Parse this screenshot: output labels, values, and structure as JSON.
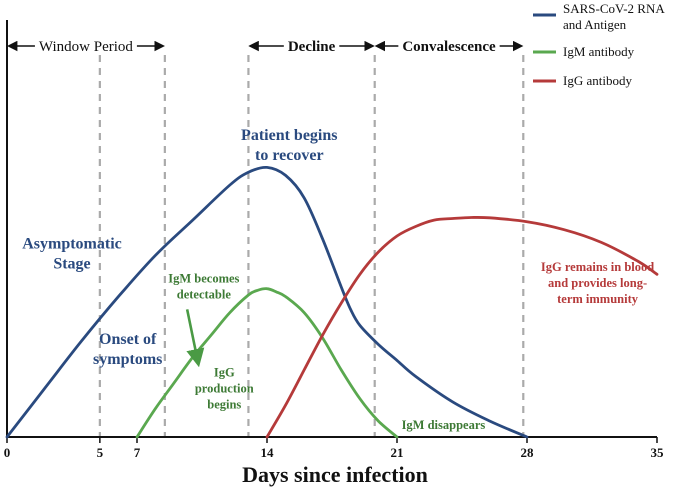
{
  "chart_data": {
    "type": "line",
    "title": "",
    "xlabel": "Days since infection",
    "ylabel": "",
    "xlim": [
      0,
      35
    ],
    "ylim": [
      0,
      1
    ],
    "grid": false,
    "legend_position": "top-right",
    "x_ticks": [
      0,
      5,
      7,
      14,
      21,
      28,
      35
    ],
    "x_tick_labels": [
      "0",
      "5",
      "7",
      "14",
      "21",
      "28",
      "35"
    ],
    "series": [
      {
        "name": "SARS-CoV-2 RNA and Antigen",
        "color": "#2a4a7f",
        "x": [
          0,
          2,
          4,
          6,
          8,
          10,
          12,
          13,
          14,
          15,
          16,
          17,
          18,
          18.5,
          19,
          20,
          21,
          22,
          24,
          26,
          28
        ],
        "y": [
          0,
          0.15,
          0.3,
          0.44,
          0.57,
          0.68,
          0.79,
          0.83,
          0.845,
          0.82,
          0.75,
          0.62,
          0.47,
          0.4,
          0.35,
          0.29,
          0.24,
          0.19,
          0.11,
          0.05,
          0
        ]
      },
      {
        "name": "IgM antibody",
        "color": "#5aa84f",
        "x": [
          7,
          8,
          9,
          10,
          11,
          12,
          13,
          13.5,
          14,
          14.5,
          15,
          16,
          17,
          18,
          19,
          20,
          21
        ],
        "y": [
          0,
          0.09,
          0.17,
          0.25,
          0.32,
          0.39,
          0.445,
          0.46,
          0.465,
          0.455,
          0.44,
          0.39,
          0.31,
          0.21,
          0.12,
          0.05,
          0
        ]
      },
      {
        "name": "IgG antibody",
        "color": "#b53a3a",
        "x": [
          14,
          15,
          16,
          17,
          18,
          19,
          20,
          21,
          22,
          23,
          24,
          25,
          26,
          28,
          30,
          32,
          34,
          35
        ],
        "y": [
          0,
          0.1,
          0.21,
          0.32,
          0.42,
          0.51,
          0.58,
          0.63,
          0.66,
          0.68,
          0.685,
          0.688,
          0.687,
          0.675,
          0.65,
          0.61,
          0.55,
          0.51
        ]
      }
    ],
    "dashed_lines_x": [
      5,
      8.5,
      13,
      19.8,
      27.8
    ],
    "phases": [
      {
        "label": "Window Period",
        "x_start": 0,
        "x_end": 8.5
      },
      {
        "label": "Decline",
        "x_start": 13,
        "x_end": 19.8
      },
      {
        "label": "Convalescence",
        "x_start": 19.8,
        "x_end": 27.8
      }
    ],
    "annotations": [
      {
        "text": [
          "Asymptomatic",
          "Stage"
        ],
        "x": 3.5,
        "y": 0.56,
        "color": "#2a4a7f",
        "size": "large"
      },
      {
        "text": [
          "Onset of",
          "symptoms"
        ],
        "x": 6.5,
        "y": 0.26,
        "color": "#2a4a7f",
        "size": "large"
      },
      {
        "text": [
          "Patient begins",
          "to recover"
        ],
        "x": 15.2,
        "y": 0.9,
        "color": "#2a4a7f",
        "size": "large"
      },
      {
        "text": [
          "IgM becomes",
          "detectable"
        ],
        "x": 10.6,
        "y": 0.46,
        "color": "#3d7a35",
        "size": "small"
      },
      {
        "text": [
          "IgG",
          "production",
          "begins"
        ],
        "x": 11.7,
        "y": 0.14,
        "color": "#3d7a35",
        "size": "small"
      },
      {
        "text": [
          "IgM disappears"
        ],
        "x": 23.5,
        "y": 0.025,
        "color": "#3d7a35",
        "size": "small"
      },
      {
        "text": [
          "IgG remains in blood",
          "and provides long-",
          "term immunity"
        ],
        "x": 31.8,
        "y": 0.47,
        "color": "#b53a3a",
        "size": "small"
      }
    ],
    "arrow": {
      "from": [
        9.7,
        0.4
      ],
      "to": [
        10.3,
        0.23
      ],
      "color": "#4a9a44"
    }
  }
}
